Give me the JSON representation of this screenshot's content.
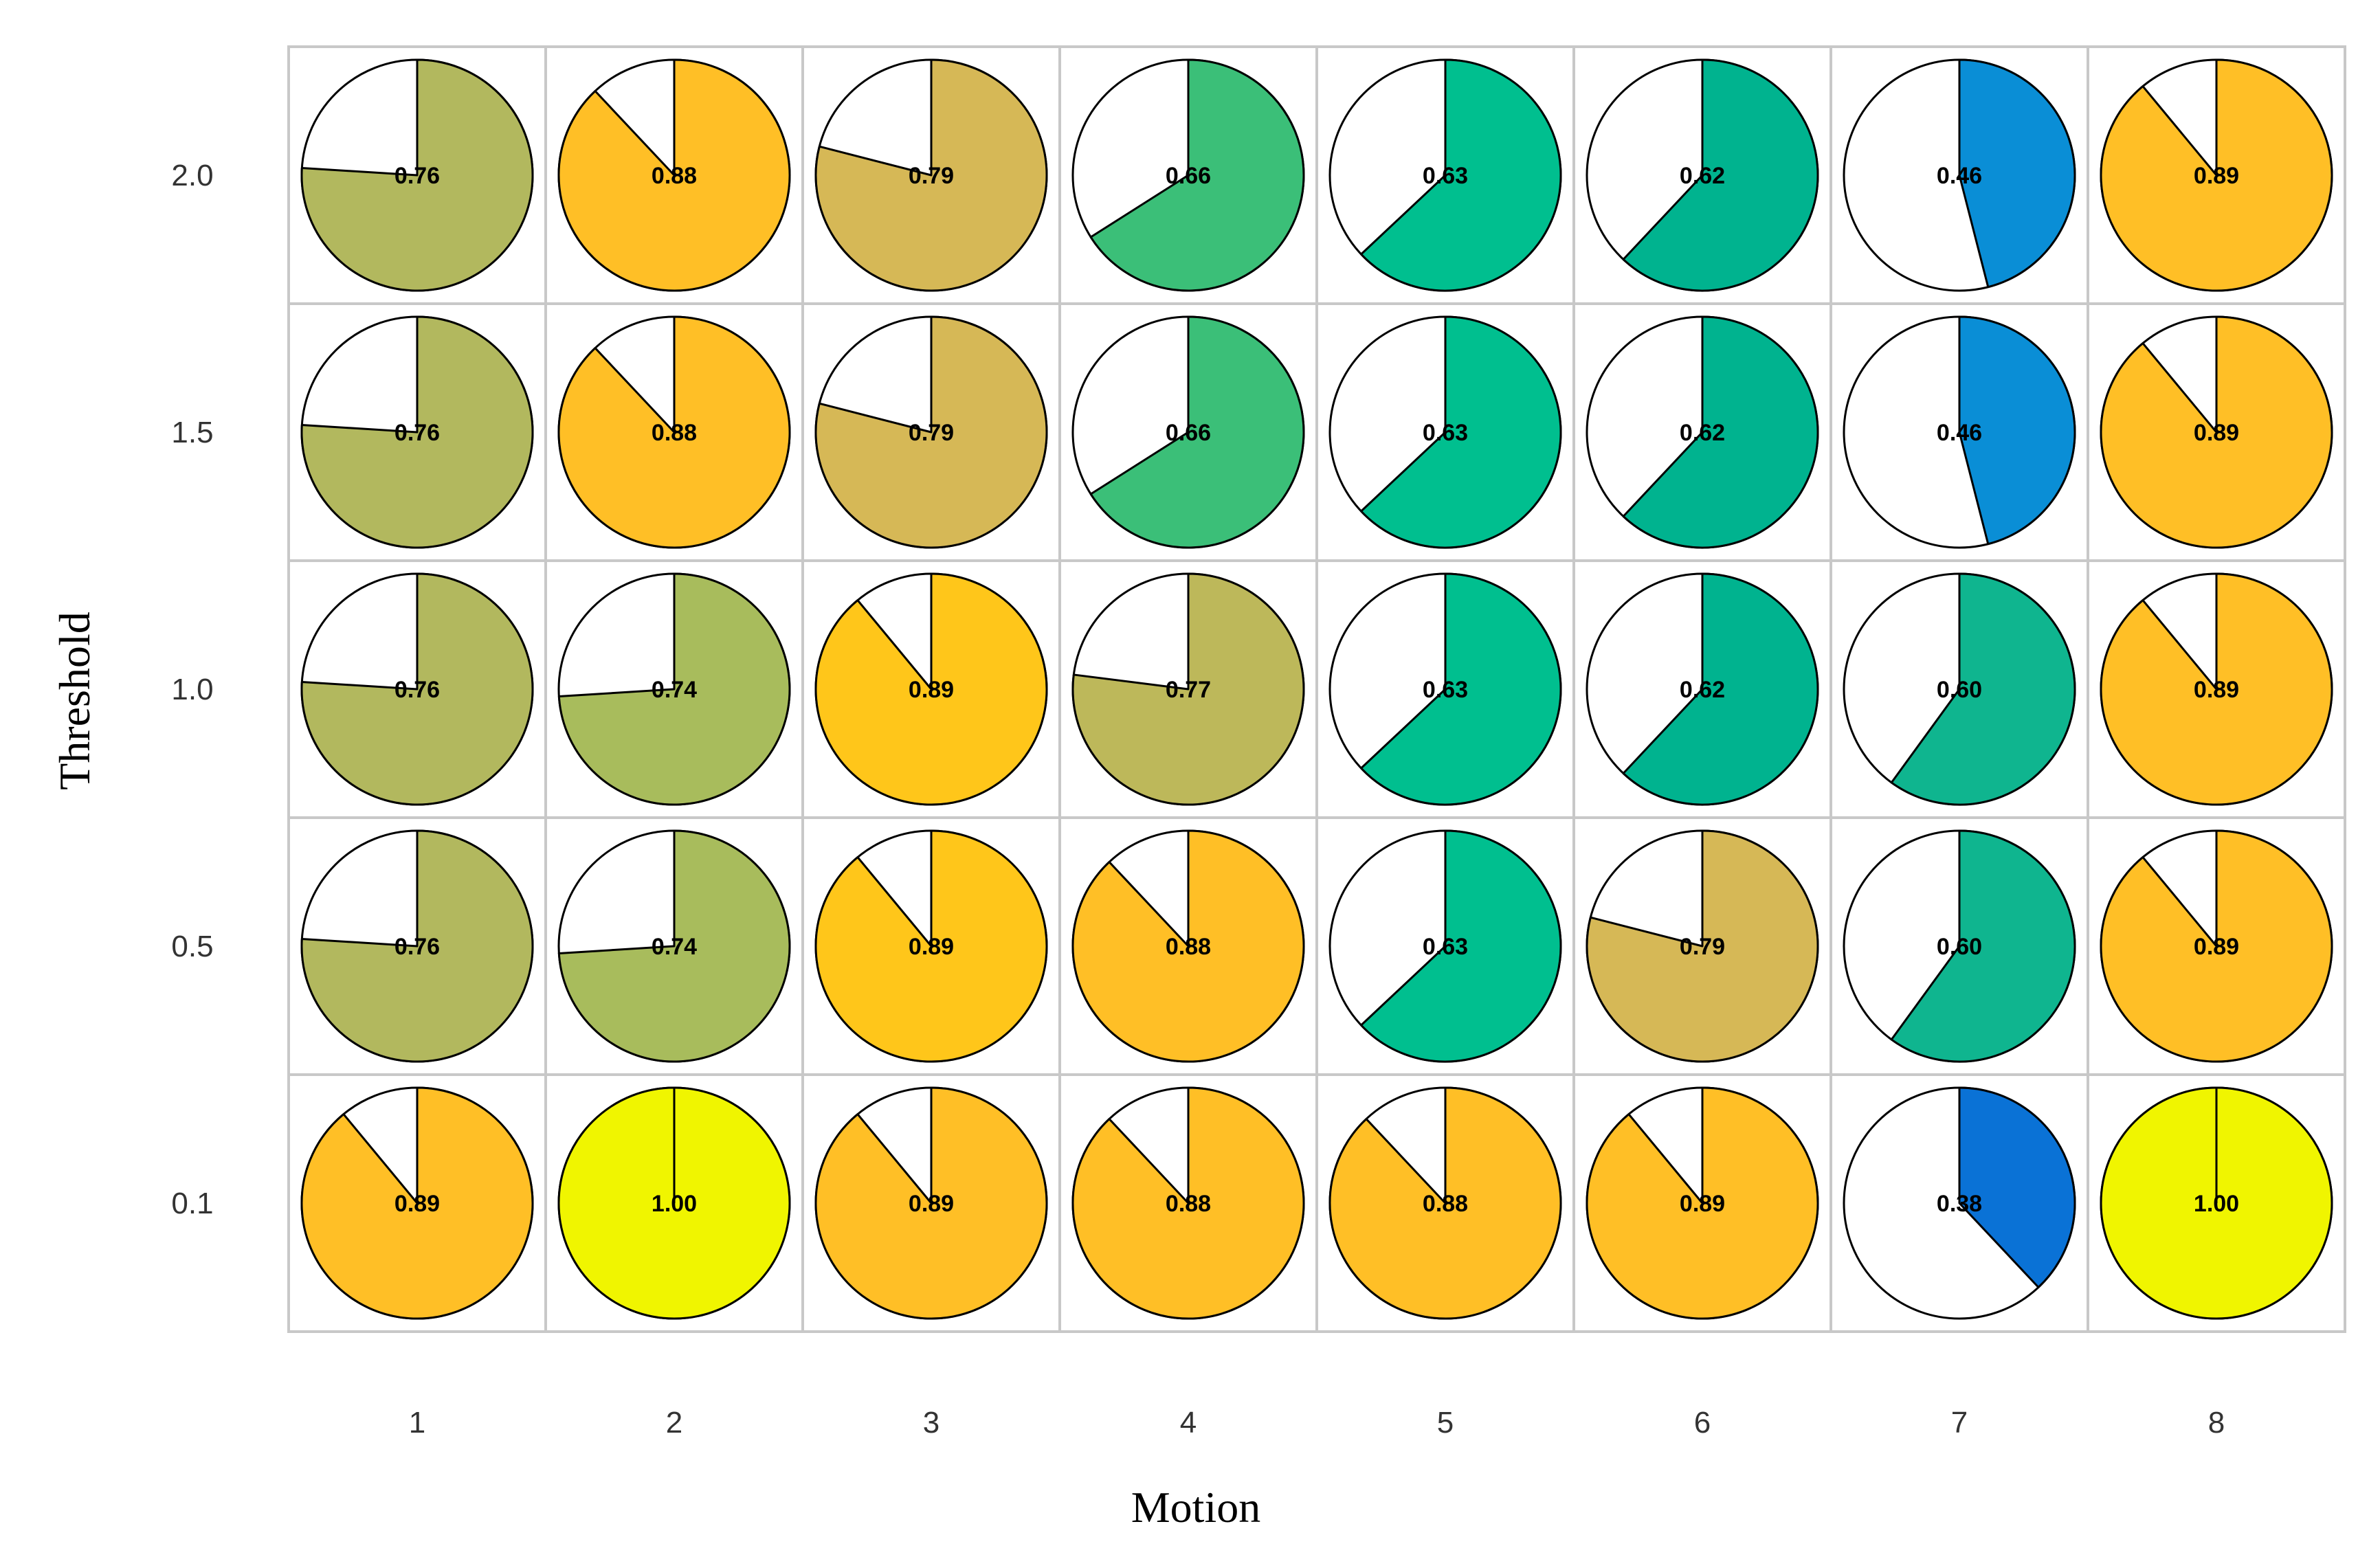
{
  "chart_data": {
    "type": "pie",
    "xlabel": "Motion",
    "ylabel": "Threshold",
    "x_categories": [
      "1",
      "2",
      "3",
      "4",
      "5",
      "6",
      "7",
      "8"
    ],
    "y_categories": [
      "2.0",
      "1.5",
      "1.0",
      "0.5",
      "0.1"
    ],
    "values": [
      [
        "0.76",
        "0.88",
        "0.79",
        "0.66",
        "0.63",
        "0.62",
        "0.46",
        "0.89"
      ],
      [
        "0.76",
        "0.88",
        "0.79",
        "0.66",
        "0.63",
        "0.62",
        "0.46",
        "0.89"
      ],
      [
        "0.76",
        "0.74",
        "0.89",
        "0.77",
        "0.63",
        "0.62",
        "0.60",
        "0.89"
      ],
      [
        "0.76",
        "0.74",
        "0.89",
        "0.88",
        "0.63",
        "0.79",
        "0.60",
        "0.89"
      ],
      [
        "0.89",
        "1.00",
        "0.89",
        "0.88",
        "0.88",
        "0.89",
        "0.38",
        "1.00"
      ]
    ],
    "colors": [
      [
        "#b2b85e",
        "#ffbf26",
        "#d6b856",
        "#3bbf78",
        "#00bf8f",
        "#00b38f",
        "#0a8ed6",
        "#ffbf26"
      ],
      [
        "#b2b85e",
        "#ffbf26",
        "#d6b856",
        "#3bbf78",
        "#00bf8f",
        "#00b38f",
        "#0a8ed6",
        "#ffbf26"
      ],
      [
        "#b2b85e",
        "#a8bc5c",
        "#ffc61a",
        "#bdb85a",
        "#00bf8f",
        "#00b38f",
        "#0fb58f",
        "#ffbf26"
      ],
      [
        "#b2b85e",
        "#a8bc5c",
        "#ffc61a",
        "#ffbf26",
        "#00bf8f",
        "#d6b856",
        "#0fb58f",
        "#ffbf26"
      ],
      [
        "#ffbf26",
        "#f0f500",
        "#ffbf26",
        "#ffbf26",
        "#ffbf26",
        "#ffbf26",
        "#0a72d6",
        "#f0f500"
      ]
    ],
    "grid": true
  }
}
